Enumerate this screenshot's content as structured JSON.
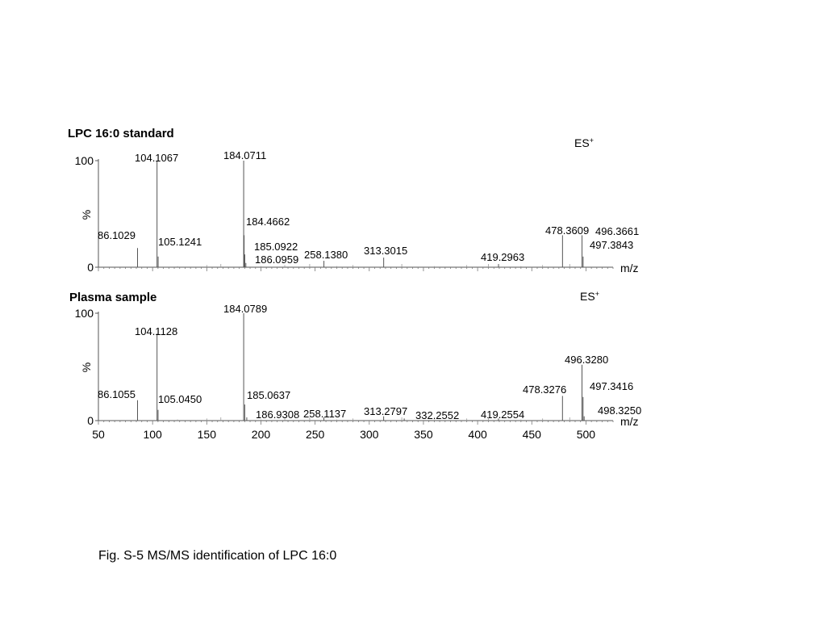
{
  "caption": "Fig. S-5 MS/MS identification of LPC 16:0",
  "chart_data": [
    {
      "type": "bar",
      "title": "LPC 16:0 standard",
      "mode": "ES+",
      "xlabel": "m/z",
      "ylabel": "%",
      "xlim": [
        50,
        525
      ],
      "ylim": [
        0,
        100
      ],
      "yticks": [
        0,
        100
      ],
      "show_x_tick_labels": false,
      "peaks": [
        {
          "mz": 86.1029,
          "intensity": 18,
          "label": "86.1029"
        },
        {
          "mz": 104.1067,
          "intensity": 100,
          "label": "104.1067"
        },
        {
          "mz": 105.1241,
          "intensity": 10,
          "label": "105.1241"
        },
        {
          "mz": 184.0711,
          "intensity": 100,
          "label": "184.0711"
        },
        {
          "mz": 184.4662,
          "intensity": 30,
          "label": "184.4662"
        },
        {
          "mz": 185.0922,
          "intensity": 12,
          "label": "185.0922"
        },
        {
          "mz": 186.0959,
          "intensity": 4,
          "label": "186.0959"
        },
        {
          "mz": 258.138,
          "intensity": 6,
          "label": "258.1380"
        },
        {
          "mz": 313.3015,
          "intensity": 9,
          "label": "313.3015"
        },
        {
          "mz": 419.2963,
          "intensity": 3,
          "label": "419.2963"
        },
        {
          "mz": 478.3609,
          "intensity": 30,
          "label": "478.3609"
        },
        {
          "mz": 496.3661,
          "intensity": 30,
          "label": "496.3661"
        },
        {
          "mz": 497.3843,
          "intensity": 10,
          "label": "497.3843"
        }
      ]
    },
    {
      "type": "bar",
      "title": "Plasma sample",
      "mode": "ES+",
      "xlabel": "m/z",
      "ylabel": "%",
      "xlim": [
        50,
        525
      ],
      "ylim": [
        0,
        100
      ],
      "yticks": [
        0,
        100
      ],
      "xticks": [
        50,
        100,
        150,
        200,
        250,
        300,
        350,
        400,
        450,
        500
      ],
      "show_x_tick_labels": true,
      "peaks": [
        {
          "mz": 86.1055,
          "intensity": 19,
          "label": "86.1055"
        },
        {
          "mz": 104.1128,
          "intensity": 81,
          "label": "104.1128"
        },
        {
          "mz": 105.045,
          "intensity": 10,
          "label": "105.0450"
        },
        {
          "mz": 184.0789,
          "intensity": 100,
          "label": "184.0789"
        },
        {
          "mz": 185.0637,
          "intensity": 15,
          "label": "185.0637"
        },
        {
          "mz": 186.9308,
          "intensity": 3,
          "label": "186.9308"
        },
        {
          "mz": 258.1137,
          "intensity": 3,
          "label": "258.1137"
        },
        {
          "mz": 313.2797,
          "intensity": 4,
          "label": "313.2797"
        },
        {
          "mz": 332.2552,
          "intensity": 2,
          "label": "332.2552"
        },
        {
          "mz": 419.2554,
          "intensity": 2,
          "label": "419.2554"
        },
        {
          "mz": 478.3276,
          "intensity": 23,
          "label": "478.3276"
        },
        {
          "mz": 496.328,
          "intensity": 52,
          "label": "496.3280"
        },
        {
          "mz": 497.3416,
          "intensity": 22,
          "label": "497.3416"
        },
        {
          "mz": 498.325,
          "intensity": 4,
          "label": "498.3250"
        }
      ]
    }
  ]
}
